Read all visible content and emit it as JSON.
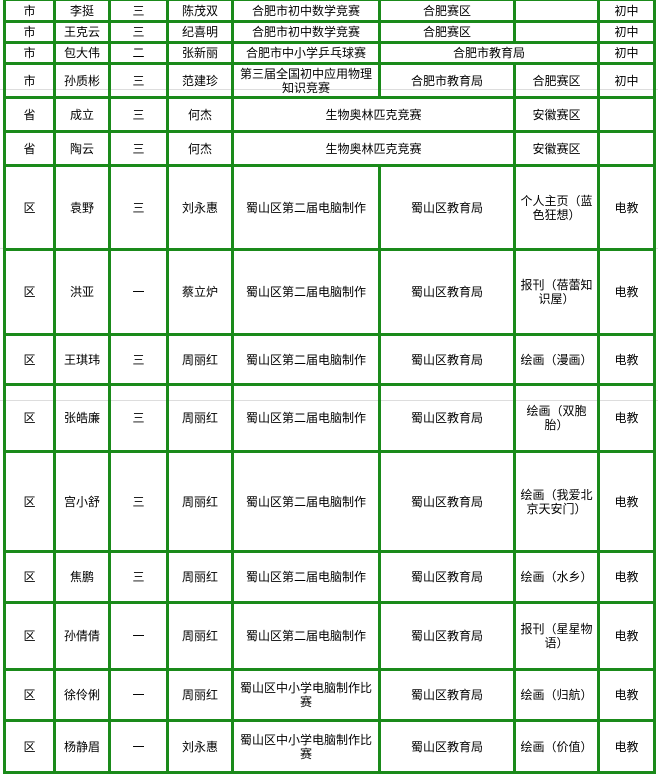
{
  "rows": [
    {
      "level": "市",
      "name": "李挺",
      "grade": "三",
      "teacher": "陈茂双",
      "competition": "合肥市初中数学竞赛",
      "organizer": "合肥赛区",
      "region": "",
      "category": "初中"
    },
    {
      "level": "市",
      "name": "王克云",
      "grade": "三",
      "teacher": "纪喜明",
      "competition": "合肥市初中数学竞赛",
      "organizer": "合肥赛区",
      "region": "",
      "category": "初中"
    },
    {
      "level": "市",
      "name": "包大伟",
      "grade": "二",
      "teacher": "张新丽",
      "competition": "合肥市中小学乒乓球赛",
      "organizer": "合肥市教育局",
      "category": "初中"
    },
    {
      "level": "市",
      "name": "孙质彬",
      "grade": "三",
      "teacher": "范建珍",
      "competition": "第三届全国初中应用物理知识竞赛",
      "organizer": "合肥市教育局",
      "region": "合肥赛区",
      "category": "初中"
    },
    {
      "level": "省",
      "name": "成立",
      "grade": "三",
      "teacher": "何杰",
      "competition": "生物奥林匹克竞赛",
      "region": "安徽赛区",
      "category": ""
    },
    {
      "level": "省",
      "name": "陶云",
      "grade": "三",
      "teacher": "何杰",
      "competition": "生物奥林匹克竞赛",
      "region": "安徽赛区",
      "category": ""
    },
    {
      "level": "区",
      "name": "袁野",
      "grade": "三",
      "teacher": "刘永惠",
      "competition": "蜀山区第二届电脑制作",
      "organizer": "蜀山区教育局",
      "region": "个人主页（蓝色狂想）",
      "category": "电教"
    },
    {
      "level": "区",
      "name": "洪亚",
      "grade": "一",
      "teacher": "蔡立炉",
      "competition": "蜀山区第二届电脑制作",
      "organizer": "蜀山区教育局",
      "region": "报刊（蓓蕾知识屋）",
      "category": "电教"
    },
    {
      "level": "区",
      "name": "王琪玮",
      "grade": "三",
      "teacher": "周丽红",
      "competition": "蜀山区第二届电脑制作",
      "organizer": "蜀山区教育局",
      "region": "绘画（漫画）",
      "category": "电教"
    },
    {
      "level": "区",
      "name": "张皓廉",
      "grade": "三",
      "teacher": "周丽红",
      "competition": "蜀山区第二届电脑制作",
      "organizer": "蜀山区教育局",
      "region": "绘画（双胞胎）",
      "category": "电教"
    },
    {
      "level": "区",
      "name": "宫小舒",
      "grade": "三",
      "teacher": "周丽红",
      "competition": "蜀山区第二届电脑制作",
      "organizer": "蜀山区教育局",
      "region": "绘画（我爱北京天安门）",
      "category": "电教"
    },
    {
      "level": "区",
      "name": "焦鹏",
      "grade": "三",
      "teacher": "周丽红",
      "competition": "蜀山区第二届电脑制作",
      "organizer": "蜀山区教育局",
      "region": "绘画（水乡）",
      "category": "电教"
    },
    {
      "level": "区",
      "name": "孙倩倩",
      "grade": "一",
      "teacher": "周丽红",
      "competition": "蜀山区第二届电脑制作",
      "organizer": "蜀山区教育局",
      "region": "报刊（星星物语）",
      "category": "电教"
    },
    {
      "level": "区",
      "name": "徐伶俐",
      "grade": "一",
      "teacher": "周丽红",
      "competition": "蜀山区中小学电脑制作比赛",
      "organizer": "蜀山区教育局",
      "region": "绘画（归航）",
      "category": "电教"
    },
    {
      "level": "区",
      "name": "杨静眉",
      "grade": "一",
      "teacher": "刘永惠",
      "competition": "蜀山区中小学电脑制作比赛",
      "organizer": "蜀山区教育局",
      "region": "绘画（价值）",
      "category": "电教"
    }
  ]
}
